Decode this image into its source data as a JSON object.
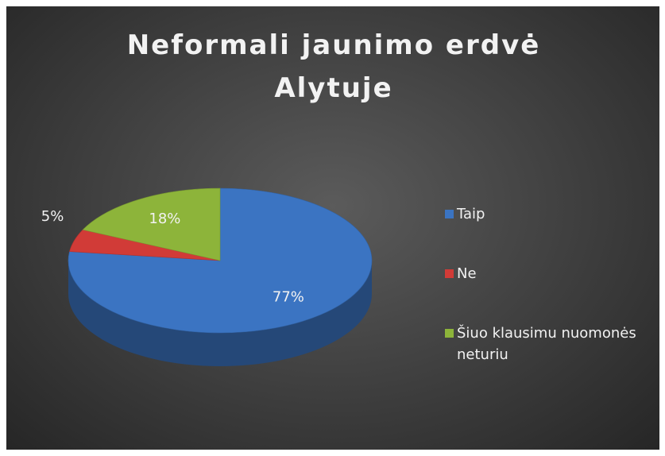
{
  "chart_data": {
    "type": "pie",
    "title": "Neformali jaunimo erdvė Alytuje",
    "categories": [
      "Taip",
      "Ne",
      "Šiuo klausimu nuomonės neturiu"
    ],
    "values": [
      77,
      5,
      18
    ],
    "value_labels": [
      "77%",
      "5%",
      "18%"
    ],
    "colors": [
      "#3b74c2",
      "#d13b37",
      "#8db43a"
    ],
    "legend": "right"
  }
}
